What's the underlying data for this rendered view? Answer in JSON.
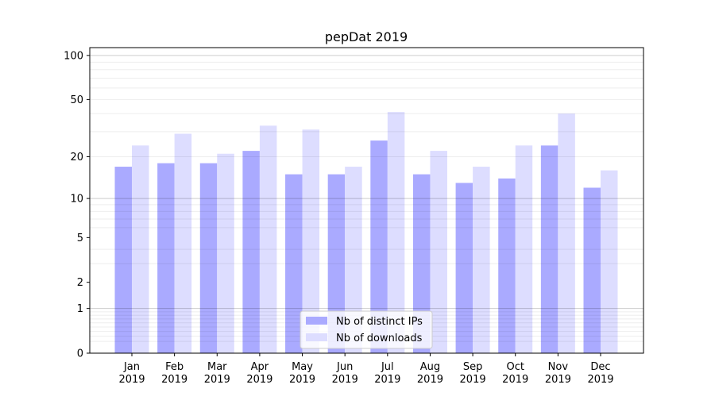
{
  "chart_data": {
    "type": "bar",
    "title": "pepDat 2019",
    "xlabel": "",
    "ylabel": "",
    "yscale": "log10(1+y)",
    "ylim": [
      0,
      113
    ],
    "yticks": [
      0,
      1,
      2,
      5,
      10,
      20,
      50,
      100
    ],
    "grid": true,
    "legend_position": "bottom-center",
    "categories": [
      "Jan\n2019",
      "Feb\n2019",
      "Mar\n2019",
      "Apr\n2019",
      "May\n2019",
      "Jun\n2019",
      "Jul\n2019",
      "Aug\n2019",
      "Sep\n2019",
      "Oct\n2019",
      "Nov\n2019",
      "Dec\n2019"
    ],
    "series": [
      {
        "name": "Nb of distinct IPs",
        "color": "#aaaaff",
        "values": [
          17,
          18,
          18,
          22,
          15,
          15,
          26,
          15,
          13,
          14,
          24,
          12
        ]
      },
      {
        "name": "Nb of downloads",
        "color": "#ddddff",
        "values": [
          24,
          29,
          21,
          33,
          31,
          17,
          41,
          22,
          17,
          24,
          40,
          16
        ]
      }
    ]
  }
}
